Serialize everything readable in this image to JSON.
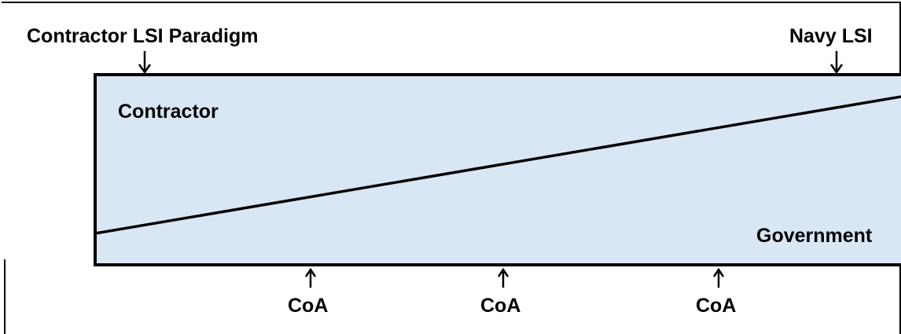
{
  "top_labels": {
    "left": "Contractor LSI Paradigm",
    "right": "Navy LSI"
  },
  "region_labels": {
    "upper": "Contractor",
    "lower": "Government"
  },
  "bottom_labels": [
    "CoA",
    "CoA",
    "CoA"
  ],
  "colors": {
    "box_fill": "#d9e6f4",
    "stroke": "#000000"
  }
}
